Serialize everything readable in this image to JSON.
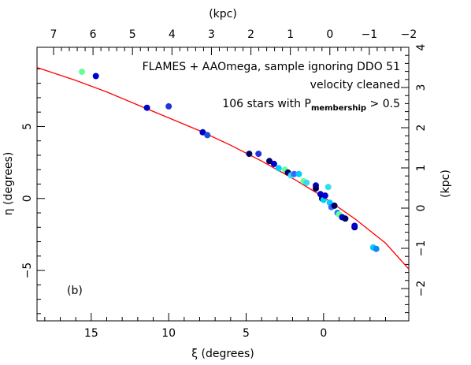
{
  "chart_data": {
    "type": "scatter",
    "panel_label": "(b)",
    "xlabel": "ξ (degrees)",
    "ylabel": "η (degrees)",
    "top_xlabel": "(kpc)",
    "right_ylabel": "(kpc)",
    "xlim": [
      18.5,
      -5.5
    ],
    "ylim": [
      -8.5,
      10.5
    ],
    "x_ticks": [
      15,
      10,
      5,
      0
    ],
    "y_ticks": [
      -5,
      0,
      5
    ],
    "top_ticks": [
      7,
      6,
      5,
      4,
      3,
      2,
      1,
      0,
      -1,
      -2
    ],
    "right_ticks": [
      4,
      3,
      2,
      1,
      0,
      -1,
      -2
    ],
    "annotations": {
      "line1": "FLAMES + AAOmega, sample ignoring DDO 51",
      "line2": "velocity cleaned",
      "line3_main": "106 stars with P",
      "line3_sub": "membership",
      "line3_tail": " > 0.5"
    },
    "colors": {
      "fit_line": "#ff0000",
      "points": [
        "#66ff99",
        "#0000cc",
        "#2233dd",
        "#1a4fd6",
        "#000066",
        "#00ccff",
        "#33ddee",
        "#3366ff",
        "#1188ee"
      ]
    },
    "curve": {
      "x": [
        18.5,
        16,
        14,
        12,
        10,
        8,
        6,
        4,
        2,
        0,
        -2,
        -4,
        -5.5
      ],
      "y": [
        9.1,
        8.2,
        7.4,
        6.5,
        5.6,
        4.7,
        3.7,
        2.6,
        1.4,
        0.1,
        -1.4,
        -3.1,
        -4.9
      ]
    },
    "points": [
      {
        "x": 15.6,
        "y": 8.8,
        "c": 0
      },
      {
        "x": 14.7,
        "y": 8.5,
        "c": 1
      },
      {
        "x": 11.4,
        "y": 6.3,
        "c": 1
      },
      {
        "x": 10.0,
        "y": 6.4,
        "c": 2
      },
      {
        "x": 7.8,
        "y": 4.6,
        "c": 1
      },
      {
        "x": 7.5,
        "y": 4.4,
        "c": 3
      },
      {
        "x": 4.8,
        "y": 3.1,
        "c": 4
      },
      {
        "x": 4.2,
        "y": 3.1,
        "c": 2
      },
      {
        "x": 3.5,
        "y": 2.6,
        "c": 4
      },
      {
        "x": 3.2,
        "y": 2.4,
        "c": 1
      },
      {
        "x": 2.9,
        "y": 2.1,
        "c": 5
      },
      {
        "x": 2.5,
        "y": 2.0,
        "c": 0
      },
      {
        "x": 2.3,
        "y": 1.8,
        "c": 4
      },
      {
        "x": 2.1,
        "y": 1.6,
        "c": 6
      },
      {
        "x": 1.9,
        "y": 1.7,
        "c": 7
      },
      {
        "x": 1.6,
        "y": 1.7,
        "c": 5
      },
      {
        "x": 1.3,
        "y": 1.2,
        "c": 0
      },
      {
        "x": 1.1,
        "y": 1.1,
        "c": 6
      },
      {
        "x": 0.5,
        "y": 0.9,
        "c": 1
      },
      {
        "x": 0.5,
        "y": 0.7,
        "c": 4
      },
      {
        "x": 0.2,
        "y": 0.3,
        "c": 1
      },
      {
        "x": 0.1,
        "y": 0.0,
        "c": 4
      },
      {
        "x": 0.0,
        "y": -0.1,
        "c": 5
      },
      {
        "x": -0.1,
        "y": 0.2,
        "c": 1
      },
      {
        "x": -0.3,
        "y": 0.8,
        "c": 6
      },
      {
        "x": -0.4,
        "y": -0.3,
        "c": 5
      },
      {
        "x": -0.5,
        "y": -0.6,
        "c": 7
      },
      {
        "x": -0.7,
        "y": -0.5,
        "c": 4
      },
      {
        "x": -0.9,
        "y": -1.0,
        "c": 8
      },
      {
        "x": -1.0,
        "y": -1.1,
        "c": 0
      },
      {
        "x": -1.2,
        "y": -1.3,
        "c": 1
      },
      {
        "x": -1.4,
        "y": -1.4,
        "c": 4
      },
      {
        "x": -2.0,
        "y": -2.0,
        "c": 4
      },
      {
        "x": -2.0,
        "y": -1.9,
        "c": 1
      },
      {
        "x": -3.2,
        "y": -3.4,
        "c": 5
      },
      {
        "x": -3.4,
        "y": -3.5,
        "c": 8
      }
    ]
  }
}
